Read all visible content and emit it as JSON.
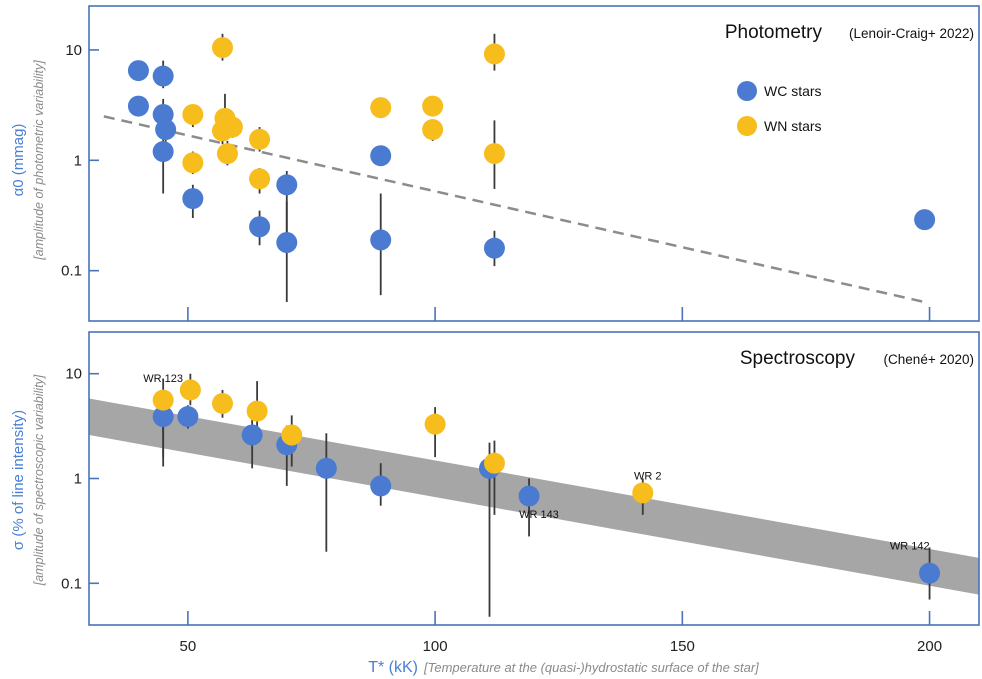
{
  "colors": {
    "axis": "#4a73b8",
    "wc": "#4a7bd0",
    "wn": "#f7bd1c",
    "trend": "#8c8c8c",
    "band": "#a6a6a6",
    "errorbar": "#3a3a3a"
  },
  "x_axis": {
    "label_main": "T* (kK)",
    "label_sub": "[Temperature at the (quasi-)hydrostatic surface of the star]",
    "ticks": [
      50,
      100,
      150,
      200
    ],
    "tick_labels": [
      "50",
      "100",
      "150",
      "200"
    ],
    "range": [
      30,
      210
    ]
  },
  "chart_data": [
    {
      "type": "scatter",
      "title": "Photometry",
      "title_ref": "(Lenoir-Craig+ 2022)",
      "ylabel_main": "α0 (mmag)",
      "ylabel_sub": "[amplitude of photometric variability]",
      "yscale": "log",
      "ylim": [
        0.035,
        25
      ],
      "yticks": [
        0.1,
        1,
        10
      ],
      "ytick_labels": [
        "0.1",
        "1",
        "10"
      ],
      "legend": {
        "position": "top-right",
        "entries": [
          "WC stars",
          "WN stars"
        ]
      },
      "trend_line": {
        "style": "dashed",
        "from": [
          33,
          2.5
        ],
        "to": [
          199,
          0.052
        ]
      },
      "series": [
        {
          "name": "WC stars",
          "points": [
            {
              "x": 40,
              "y": 6.5,
              "ylo": 6.5,
              "yhi": 6.5
            },
            {
              "x": 40,
              "y": 3.1,
              "ylo": 2.6,
              "yhi": 3.8
            },
            {
              "x": 45,
              "y": 5.8,
              "ylo": 4.5,
              "yhi": 8.0
            },
            {
              "x": 45,
              "y": 2.6,
              "ylo": 1.8,
              "yhi": 3.6
            },
            {
              "x": 45.5,
              "y": 1.9,
              "ylo": 1.3,
              "yhi": 3.0
            },
            {
              "x": 45,
              "y": 1.2,
              "ylo": 0.5,
              "yhi": 2.0
            },
            {
              "x": 51,
              "y": 0.45,
              "ylo": 0.3,
              "yhi": 0.6
            },
            {
              "x": 64.5,
              "y": 0.25,
              "ylo": 0.17,
              "yhi": 0.35
            },
            {
              "x": 70,
              "y": 0.6,
              "ylo": 0.2,
              "yhi": 0.8
            },
            {
              "x": 70,
              "y": 0.18,
              "ylo": 0.052,
              "yhi": 0.42
            },
            {
              "x": 89,
              "y": 1.1,
              "ylo": 0.9,
              "yhi": 1.25
            },
            {
              "x": 89,
              "y": 0.19,
              "ylo": 0.06,
              "yhi": 0.5
            },
            {
              "x": 112,
              "y": 0.16,
              "ylo": 0.11,
              "yhi": 0.23
            },
            {
              "x": 199,
              "y": 0.29,
              "ylo": 0.29,
              "yhi": 0.29
            }
          ]
        },
        {
          "name": "WN stars",
          "points": [
            {
              "x": 57,
              "y": 10.5,
              "ylo": 8.0,
              "yhi": 14.0
            },
            {
              "x": 51,
              "y": 2.6,
              "ylo": 2.0,
              "yhi": 3.2
            },
            {
              "x": 51,
              "y": 0.95,
              "ylo": 0.75,
              "yhi": 1.2
            },
            {
              "x": 57.5,
              "y": 2.4,
              "ylo": 1.8,
              "yhi": 4.0
            },
            {
              "x": 57,
              "y": 1.85,
              "ylo": 1.4,
              "yhi": 2.4
            },
            {
              "x": 59,
              "y": 2.0,
              "ylo": 1.6,
              "yhi": 2.5
            },
            {
              "x": 58,
              "y": 1.15,
              "ylo": 0.9,
              "yhi": 1.5
            },
            {
              "x": 64.5,
              "y": 1.55,
              "ylo": 1.2,
              "yhi": 2.0
            },
            {
              "x": 64.5,
              "y": 0.68,
              "ylo": 0.5,
              "yhi": 0.85
            },
            {
              "x": 89,
              "y": 3.0,
              "ylo": 2.6,
              "yhi": 3.5
            },
            {
              "x": 99.5,
              "y": 3.1,
              "ylo": 2.6,
              "yhi": 3.6
            },
            {
              "x": 99.5,
              "y": 1.9,
              "ylo": 1.5,
              "yhi": 2.3
            },
            {
              "x": 112,
              "y": 9.2,
              "ylo": 6.5,
              "yhi": 14.0
            },
            {
              "x": 112,
              "y": 1.15,
              "ylo": 0.55,
              "yhi": 2.3
            }
          ]
        }
      ]
    },
    {
      "type": "scatter",
      "title": "Spectroscopy",
      "title_ref": "(Chené+ 2020)",
      "ylabel_main": "σ (% of line intensity)",
      "ylabel_sub": "[amplitude of spectroscopic variability]",
      "yscale": "log",
      "ylim": [
        0.04,
        25
      ],
      "yticks": [
        0.1,
        1,
        10
      ],
      "ytick_labels": [
        "0.1",
        "1",
        "10"
      ],
      "band": {
        "x": [
          30,
          210
        ],
        "upper": [
          5.8,
          0.175
        ],
        "lower": [
          2.6,
          0.078
        ]
      },
      "annotations": [
        {
          "text": "WR 123",
          "x": 45,
          "y": 8.3
        },
        {
          "text": "WR 143",
          "x": 121,
          "y": 0.42
        },
        {
          "text": "WR 2",
          "x": 143,
          "y": 0.98
        },
        {
          "text": "WR 142",
          "x": 196,
          "y": 0.21
        }
      ],
      "series": [
        {
          "name": "WC stars",
          "points": [
            {
              "x": 45,
              "y": 3.9,
              "ylo": 1.3,
              "yhi": 5.5
            },
            {
              "x": 50,
              "y": 3.9,
              "ylo": 3.0,
              "yhi": 5.0
            },
            {
              "x": 63,
              "y": 2.6,
              "ylo": 1.25,
              "yhi": 4.5
            },
            {
              "x": 70,
              "y": 2.1,
              "ylo": 0.85,
              "yhi": 3.2
            },
            {
              "x": 78,
              "y": 1.25,
              "ylo": 0.2,
              "yhi": 2.7
            },
            {
              "x": 89,
              "y": 0.85,
              "ylo": 0.55,
              "yhi": 1.4
            },
            {
              "x": 111,
              "y": 1.25,
              "ylo": 0.048,
              "yhi": 2.2
            },
            {
              "x": 119,
              "y": 0.68,
              "ylo": 0.28,
              "yhi": 1.0
            },
            {
              "x": 200,
              "y": 0.125,
              "ylo": 0.07,
              "yhi": 0.22
            }
          ]
        },
        {
          "name": "WN stars",
          "points": [
            {
              "x": 45,
              "y": 5.6,
              "ylo": 1.6,
              "yhi": 9.0
            },
            {
              "x": 50.5,
              "y": 7.0,
              "ylo": 5.0,
              "yhi": 10.0
            },
            {
              "x": 57,
              "y": 5.2,
              "ylo": 3.8,
              "yhi": 7.0
            },
            {
              "x": 64,
              "y": 4.4,
              "ylo": 2.6,
              "yhi": 8.5
            },
            {
              "x": 71,
              "y": 2.6,
              "ylo": 1.3,
              "yhi": 4.0
            },
            {
              "x": 100,
              "y": 3.3,
              "ylo": 1.6,
              "yhi": 4.8
            },
            {
              "x": 112,
              "y": 1.4,
              "ylo": 0.45,
              "yhi": 2.3
            },
            {
              "x": 142,
              "y": 0.73,
              "ylo": 0.45,
              "yhi": 1.0
            }
          ]
        }
      ]
    }
  ]
}
